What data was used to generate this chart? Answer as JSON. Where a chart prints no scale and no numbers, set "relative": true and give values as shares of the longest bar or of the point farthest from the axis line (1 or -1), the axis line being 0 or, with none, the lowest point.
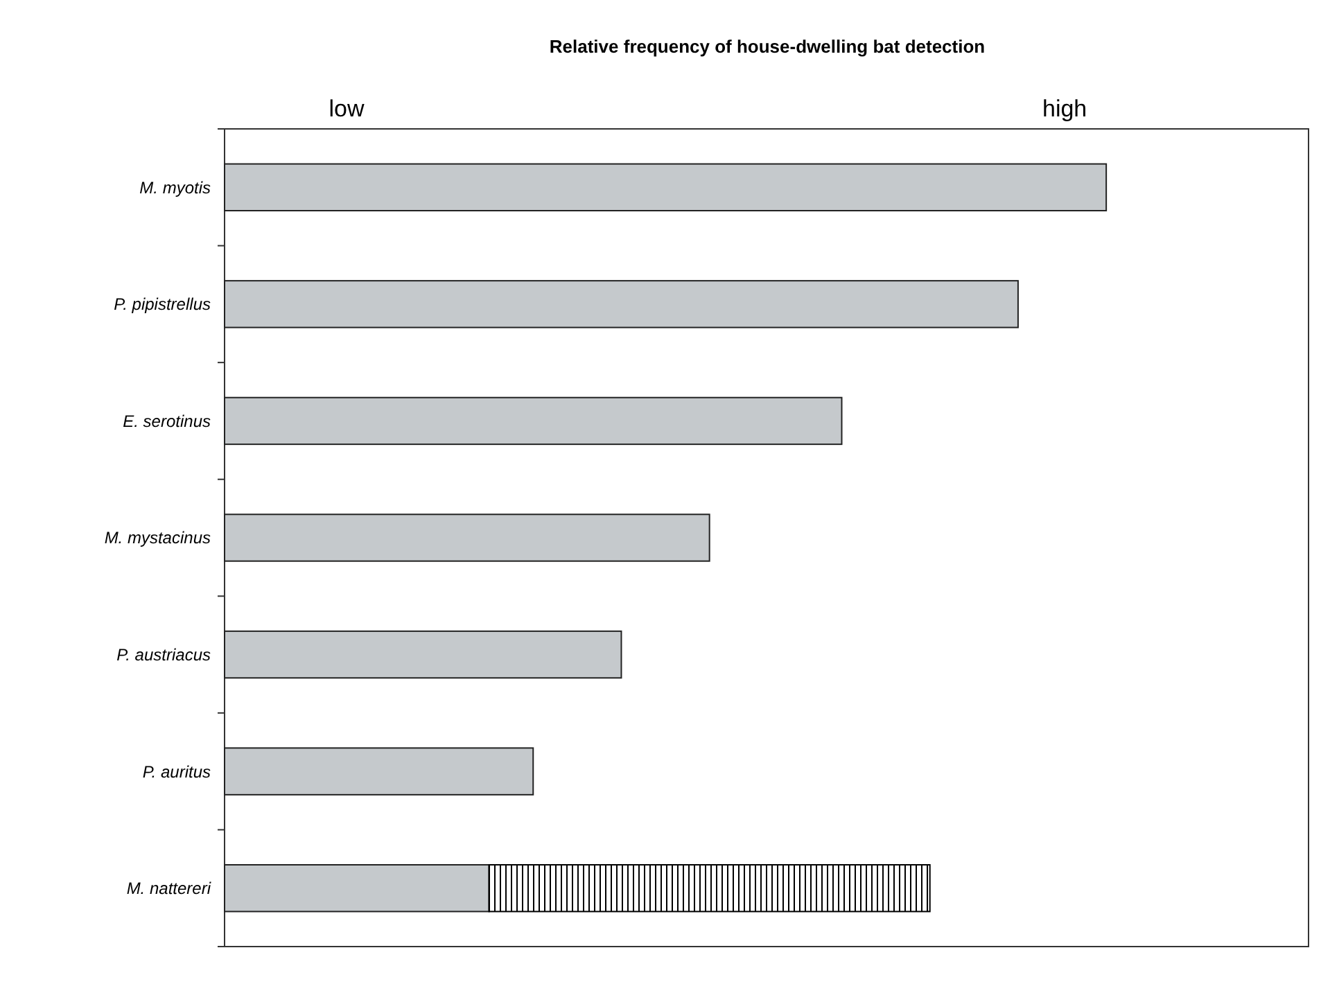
{
  "chart_data": {
    "type": "bar",
    "orientation": "horizontal",
    "stacked": true,
    "relative": true,
    "title": "Relative frequency of house-dwelling bat detection",
    "categories": [
      "M. myotis",
      "P. pipistrellus",
      "E. serotinus",
      "M. mystacinus",
      "P. austriacus",
      "P. auritus",
      "M. nattereri"
    ],
    "series": [
      {
        "color": "#c5c9cc",
        "values": [
          1,
          0.9,
          0.7,
          0.55,
          0.45,
          0.35,
          0.3
        ]
      },
      {
        "color": "#000000",
        "values": [
          null,
          null,
          null,
          null,
          null,
          null,
          0.5
        ]
      }
    ],
    "annotations": [
      "low",
      "high"
    ]
  }
}
